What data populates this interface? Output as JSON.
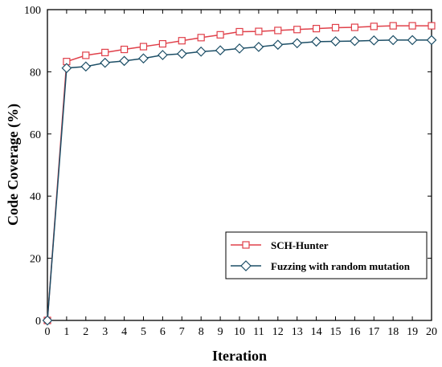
{
  "chart_data": {
    "type": "line",
    "xlabel": "Iteration",
    "ylabel": "Code Coverage (%)",
    "xlim": [
      0,
      20
    ],
    "ylim": [
      0,
      100
    ],
    "xticks": [
      0,
      1,
      2,
      3,
      4,
      5,
      6,
      7,
      8,
      9,
      10,
      11,
      12,
      13,
      14,
      15,
      16,
      17,
      18,
      19,
      20
    ],
    "yticks": [
      0,
      20,
      40,
      60,
      80,
      100
    ],
    "grid": false,
    "legend_position": "bottom-right",
    "x": [
      0,
      1,
      2,
      3,
      4,
      5,
      6,
      7,
      8,
      9,
      10,
      11,
      12,
      13,
      14,
      15,
      16,
      17,
      18,
      19,
      20
    ],
    "series": [
      {
        "name": "SCH-Hunter",
        "color": "#e0404a",
        "marker": "square",
        "values": [
          0,
          83.3,
          85.3,
          86.2,
          87.2,
          88.1,
          89.0,
          90.0,
          91.0,
          91.9,
          92.9,
          93.0,
          93.3,
          93.6,
          93.9,
          94.2,
          94.3,
          94.6,
          94.8,
          94.8,
          94.8
        ]
      },
      {
        "name": "Fuzzing with random mutation",
        "color": "#1c4e66",
        "marker": "diamond",
        "values": [
          0,
          81.2,
          81.7,
          82.9,
          83.5,
          84.3,
          85.4,
          85.8,
          86.5,
          86.9,
          87.5,
          88.0,
          88.7,
          89.2,
          89.7,
          89.8,
          89.9,
          90.1,
          90.2,
          90.2,
          90.2
        ]
      }
    ]
  }
}
